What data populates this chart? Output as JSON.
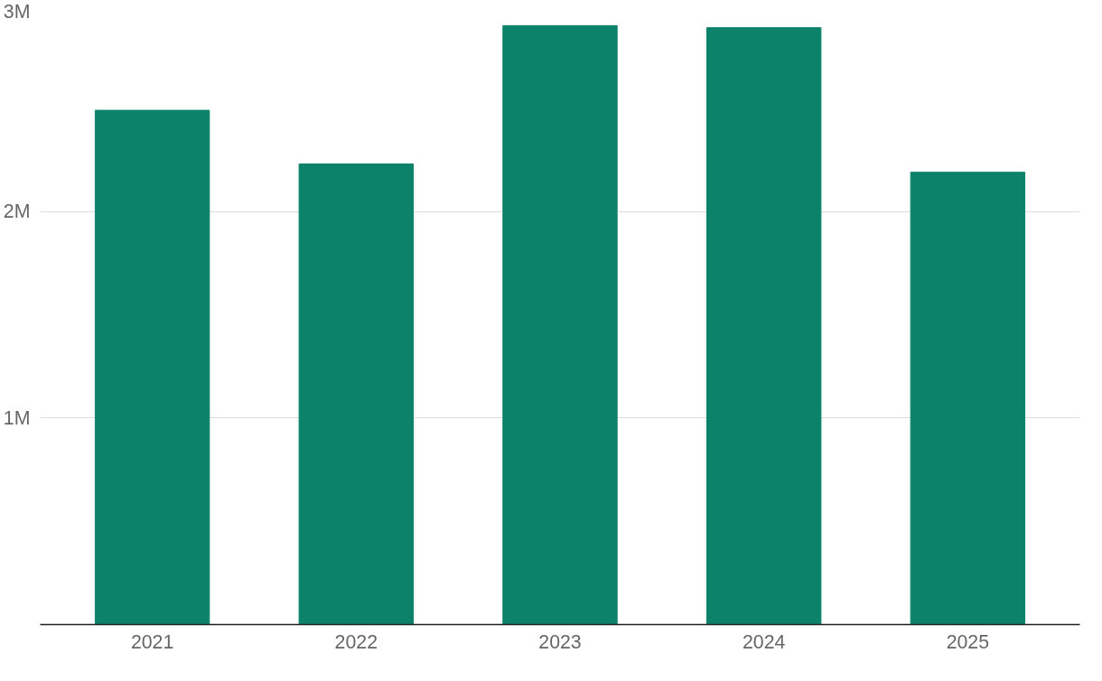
{
  "chart_data": {
    "type": "bar",
    "categories": [
      "2021",
      "2022",
      "2023",
      "2024",
      "2025"
    ],
    "values": [
      2490000,
      2230000,
      2900000,
      2890000,
      2190000
    ],
    "color": "#0b8269",
    "ylim": [
      0,
      3000000
    ],
    "yticks": [
      {
        "value": 1000000,
        "label": "1M"
      },
      {
        "value": 2000000,
        "label": "2M"
      },
      {
        "value": 3000000,
        "label": "3M"
      }
    ],
    "grid": "y"
  }
}
